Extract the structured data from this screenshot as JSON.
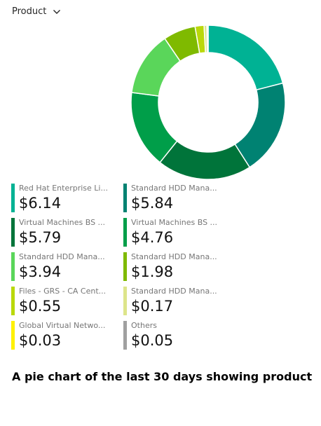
{
  "dropdown": {
    "label": "Product"
  },
  "chart_data": {
    "type": "pie",
    "donut": true,
    "slices": [
      {
        "label": "Red Hat Enterprise Li...",
        "value": 6.14,
        "display": "$6.14",
        "color": "#00b294"
      },
      {
        "label": "Standard HDD Mana...",
        "value": 5.84,
        "display": "$5.84",
        "color": "#008272"
      },
      {
        "label": "Virtual Machines BS ...",
        "value": 5.79,
        "display": "$5.79",
        "color": "#00743a"
      },
      {
        "label": "Virtual Machines BS ...",
        "value": 4.76,
        "display": "$4.76",
        "color": "#009e49"
      },
      {
        "label": "Standard HDD Mana...",
        "value": 3.94,
        "display": "$3.94",
        "color": "#5ad65a"
      },
      {
        "label": "Standard HDD Mana...",
        "value": 1.98,
        "display": "$1.98",
        "color": "#7fba00"
      },
      {
        "label": "Files - GRS - CA Cent...",
        "value": 0.55,
        "display": "$0.55",
        "color": "#bad80a"
      },
      {
        "label": "Standard HDD Mana...",
        "value": 0.17,
        "display": "$0.17",
        "color": "#dde58a"
      },
      {
        "label": "Global Virtual Netwo...",
        "value": 0.03,
        "display": "$0.03",
        "color": "#fff100"
      },
      {
        "label": "Others",
        "value": 0.05,
        "display": "$0.05",
        "color": "#a0a0a0"
      }
    ]
  },
  "caption": "A pie chart of the last 30 days showing product"
}
